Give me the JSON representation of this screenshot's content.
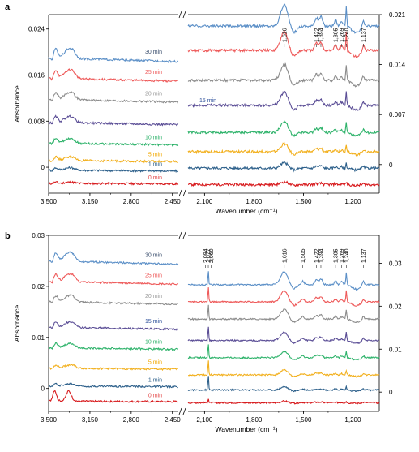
{
  "chart_data": [
    {
      "panel": "a",
      "type": "line",
      "ylabel": "Absorbance",
      "xlabel": "Wavenumber (cm⁻¹)",
      "x_break": "//",
      "x_segments": [
        [
          3500,
          2400
        ],
        [
          2200,
          1040
        ]
      ],
      "xticks": [
        {
          "value": 3500,
          "label": "3,500"
        },
        {
          "value": 3150,
          "label": "3,150"
        },
        {
          "value": 2800,
          "label": "2,800"
        },
        {
          "value": 2450,
          "label": "2,450"
        },
        {
          "value": 2100,
          "label": "2,100"
        },
        {
          "value": 1800,
          "label": "1,800"
        },
        {
          "value": 1500,
          "label": "1,500"
        },
        {
          "value": 1200,
          "label": "1,200"
        }
      ],
      "yticks_left": [
        {
          "value": 0,
          "label": "0"
        },
        {
          "value": 0.008,
          "label": "0.008"
        },
        {
          "value": 0.016,
          "label": "0.016"
        },
        {
          "value": 0.024,
          "label": "0.024"
        }
      ],
      "yticks_right": [
        {
          "value": 0,
          "label": "0"
        },
        {
          "value": 0.007,
          "label": "0.007"
        },
        {
          "value": 0.014,
          "label": "0.014"
        },
        {
          "value": 0.021,
          "label": "0.021"
        }
      ],
      "peak_labels": [
        {
          "x": 1616,
          "label": "1,616"
        },
        {
          "x": 1422,
          "label": "1,422"
        },
        {
          "x": 1394,
          "label": "1,394"
        },
        {
          "x": 1305,
          "label": "1,305"
        },
        {
          "x": 1269,
          "label": "1,269"
        },
        {
          "x": 1240,
          "label": "1,240"
        },
        {
          "x": 1137,
          "label": "1,137"
        }
      ],
      "series": [
        {
          "name": "0 min",
          "color": "#d7191c",
          "label_color": "#e34a4a",
          "offset_left": -0.0028,
          "offset_right": -0.0028
        },
        {
          "name": "1 min",
          "color": "#2c5f8a",
          "label_color": "#2c5f8a",
          "offset_left": -0.0005,
          "offset_right": -0.0005
        },
        {
          "name": "5 min",
          "color": "#f2b01e",
          "label_color": "#f2a900",
          "offset_left": 0.0012,
          "offset_right": 0.0018
        },
        {
          "name": "10 min",
          "color": "#2fb36b",
          "label_color": "#2fb36b",
          "offset_left": 0.0042,
          "offset_right": 0.0045
        },
        {
          "name": "15 min",
          "color": "#5b4e96",
          "label_color": "#2c4f9a",
          "offset_left": 0.0078,
          "offset_right": 0.0083
        },
        {
          "name": "20 min",
          "color": "#8c8c8c",
          "label_color": "#9b9b9b",
          "offset_left": 0.0118,
          "offset_right": 0.0118
        },
        {
          "name": "25 min",
          "color": "#ee5a5a",
          "label_color": "#ee5a5a",
          "offset_left": 0.0155,
          "offset_right": 0.016
        },
        {
          "name": "30 min",
          "color": "#5b8fc7",
          "label_color": "#3b4f6e",
          "offset_left": 0.019,
          "offset_right": 0.0194
        }
      ]
    },
    {
      "panel": "b",
      "type": "line",
      "ylabel": "Absorbance",
      "xlabel": "Wavenumber (cm⁻¹)",
      "x_break": "//",
      "x_segments": [
        [
          3500,
          2400
        ],
        [
          2200,
          1040
        ]
      ],
      "xticks": [
        {
          "value": 3500,
          "label": "3,500"
        },
        {
          "value": 3150,
          "label": "3,150"
        },
        {
          "value": 2800,
          "label": "2,800"
        },
        {
          "value": 2450,
          "label": "2,450"
        },
        {
          "value": 2100,
          "label": "2,100"
        },
        {
          "value": 1800,
          "label": "1,800"
        },
        {
          "value": 1500,
          "label": "1,500"
        },
        {
          "value": 1200,
          "label": "1,200"
        }
      ],
      "yticks_left": [
        {
          "value": 0,
          "label": "0"
        },
        {
          "value": 0.01,
          "label": "0.01"
        },
        {
          "value": 0.02,
          "label": "0.02"
        },
        {
          "value": 0.03,
          "label": "0.03"
        }
      ],
      "yticks_right": [
        {
          "value": 0,
          "label": "0"
        },
        {
          "value": 0.01,
          "label": "0.01"
        },
        {
          "value": 0.02,
          "label": "0.02"
        },
        {
          "value": 0.03,
          "label": "0.03"
        }
      ],
      "peak_labels": [
        {
          "x": 2094,
          "label": "2,094"
        },
        {
          "x": 2077,
          "label": "2,077"
        },
        {
          "x": 2060,
          "label": "2,060"
        },
        {
          "x": 1616,
          "label": "1,616"
        },
        {
          "x": 1505,
          "label": "1,505"
        },
        {
          "x": 1422,
          "label": "1,422"
        },
        {
          "x": 1394,
          "label": "1,394"
        },
        {
          "x": 1305,
          "label": "1,305"
        },
        {
          "x": 1269,
          "label": "1,269"
        },
        {
          "x": 1240,
          "label": "1,240"
        },
        {
          "x": 1137,
          "label": "1,137"
        }
      ],
      "series": [
        {
          "name": "0 min",
          "color": "#d7191c",
          "label_color": "#e34a4a",
          "offset_left": -0.0025,
          "offset_right": -0.0025
        },
        {
          "name": "1 min",
          "color": "#2c5f8a",
          "label_color": "#2c5f8a",
          "offset_left": 0.0005,
          "offset_right": 0.0005
        },
        {
          "name": "5 min",
          "color": "#f2b01e",
          "label_color": "#f2a900",
          "offset_left": 0.004,
          "offset_right": 0.004
        },
        {
          "name": "10 min",
          "color": "#2fb36b",
          "label_color": "#2fb36b",
          "offset_left": 0.008,
          "offset_right": 0.008
        },
        {
          "name": "15 min",
          "color": "#5b4e96",
          "label_color": "#2c4f9a",
          "offset_left": 0.012,
          "offset_right": 0.012
        },
        {
          "name": "20 min",
          "color": "#8c8c8c",
          "label_color": "#9b9b9b",
          "offset_left": 0.017,
          "offset_right": 0.017
        },
        {
          "name": "25 min",
          "color": "#ee5a5a",
          "label_color": "#ee5a5a",
          "offset_left": 0.021,
          "offset_right": 0.021
        },
        {
          "name": "30 min",
          "color": "#5b8fc7",
          "label_color": "#3b4f6e",
          "offset_left": 0.025,
          "offset_right": 0.025
        }
      ]
    }
  ]
}
